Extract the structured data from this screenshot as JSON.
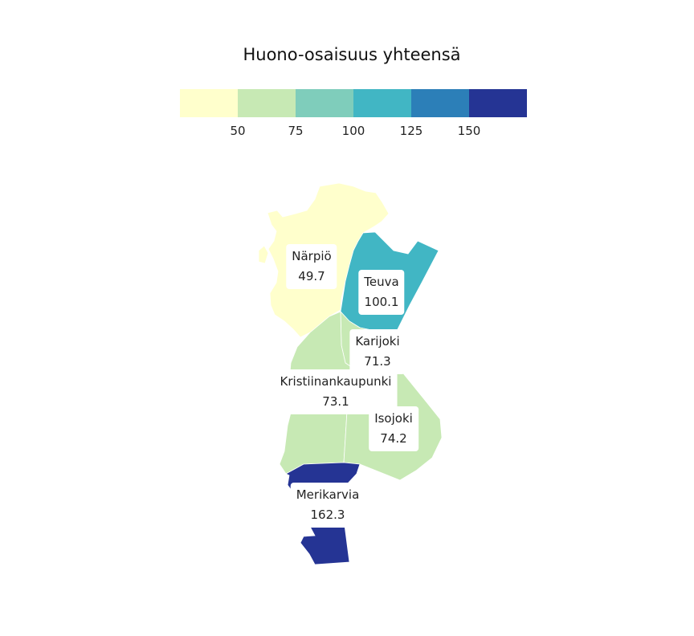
{
  "title": "Huono-osaisuus yhteensä",
  "legend": {
    "colors": [
      "#ffffcc",
      "#c7e9b4",
      "#7fcdbb",
      "#41b6c4",
      "#2c7fb8",
      "#253494"
    ],
    "ticks": [
      "50",
      "75",
      "100",
      "125",
      "150"
    ],
    "breaks": [
      50,
      75,
      100,
      125,
      150
    ]
  },
  "regions": [
    {
      "name": "Närpiö",
      "value": "49.7",
      "color": "#ffffcc"
    },
    {
      "name": "Teuva",
      "value": "100.1",
      "color": "#41b6c4"
    },
    {
      "name": "Karijoki",
      "value": "71.3",
      "color": "#c7e9b4"
    },
    {
      "name": "Kristiinankaupunki",
      "value": "73.1",
      "color": "#c7e9b4"
    },
    {
      "name": "Isojoki",
      "value": "74.2",
      "color": "#c7e9b4"
    },
    {
      "name": "Merikarvia",
      "value": "162.3",
      "color": "#253494"
    }
  ]
}
